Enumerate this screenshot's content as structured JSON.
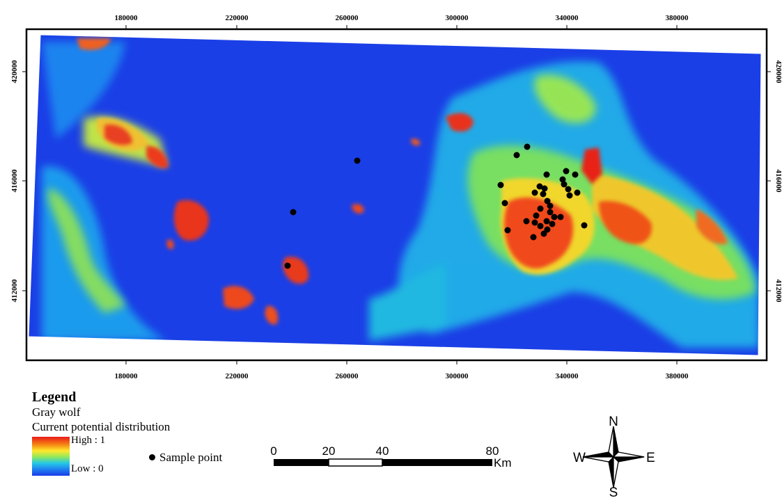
{
  "map": {
    "x_ticks": [
      "180000",
      "220000",
      "260000",
      "300000",
      "340000",
      "380000"
    ],
    "y_ticks": [
      "420000",
      "416000",
      "412000"
    ],
    "colors": {
      "low": "#1a3de8",
      "mid": "#ffe82a",
      "high": "#e8191b",
      "frame": "#000000"
    }
  },
  "legend": {
    "title": "Legend",
    "species": "Gray wolf",
    "layer": "Current potential distribution",
    "high_label": "High : 1",
    "low_label": "Low : 0",
    "sample_label": "Sample point"
  },
  "scale_bar": {
    "labels": [
      "0",
      "20",
      "40",
      "80"
    ],
    "unit": "Km"
  },
  "north_arrow": {
    "n": "N",
    "s": "S",
    "e": "E",
    "w": "W"
  }
}
